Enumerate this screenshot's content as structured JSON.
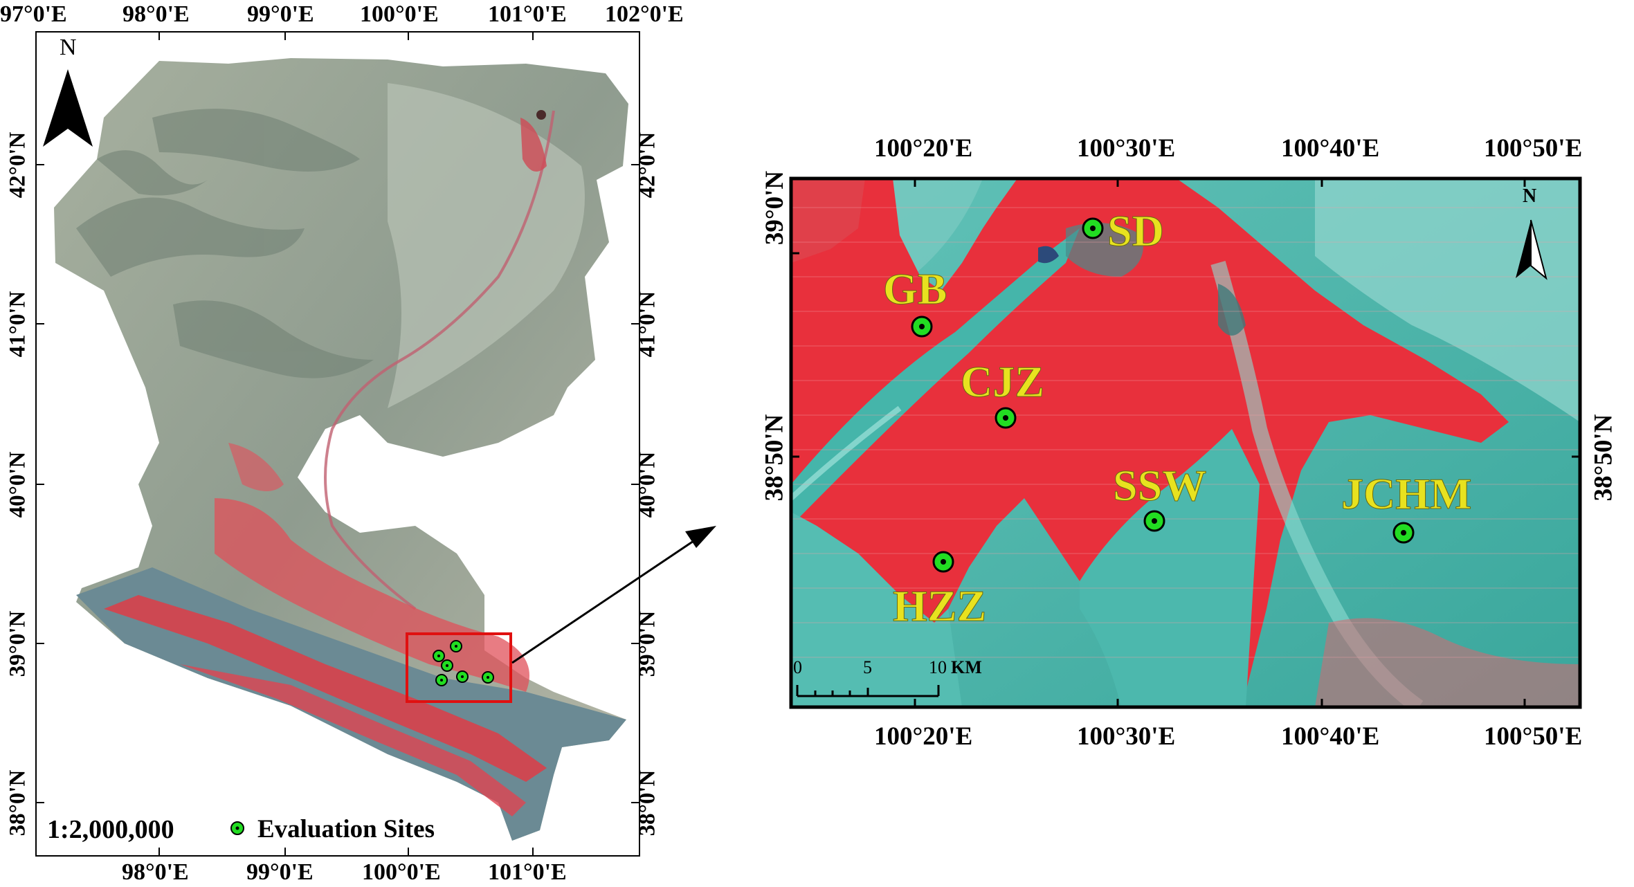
{
  "left_map": {
    "top_lon_labels": [
      "97°0'E",
      "98°0'E",
      "99°0'E",
      "100°0'E",
      "101°0'E",
      "102°0'E"
    ],
    "bottom_lon_labels": [
      "98°0'E",
      "99°0'E",
      "100°0'E",
      "101°0'E"
    ],
    "left_lat_labels": [
      "42°0'N",
      "41°0'N",
      "40°0'N",
      "39°0'N",
      "38°0'N"
    ],
    "right_lat_labels": [
      "42°0'N",
      "41°0'N",
      "40°0'N",
      "39°0'N",
      "38°0'N"
    ],
    "north_label": "N",
    "scale_text": "1:2,000,000",
    "legend_label": "Evaluation Sites"
  },
  "right_map": {
    "top_lon_labels": [
      "100°20'E",
      "100°30'E",
      "100°40'E",
      "100°50'E"
    ],
    "bottom_lon_labels": [
      "100°20'E",
      "100°30'E",
      "100°40'E",
      "100°50'E"
    ],
    "left_lat_labels": [
      "39°0'N",
      "38°50'N"
    ],
    "right_lat_labels": [
      "38°50'N"
    ],
    "north_label": "N",
    "scalebar": {
      "ticks": [
        "0",
        "5",
        "10"
      ],
      "unit": "KM"
    },
    "sites": [
      "SD",
      "GB",
      "CJZ",
      "SSW",
      "JCHM",
      "HZZ"
    ]
  },
  "colors": {
    "site_marker": "#22dd22",
    "site_label": "#e8e21f",
    "vegetation_red": "#e8303c",
    "water_cyan": "#3fb7aa",
    "desert_gray": "#9aa79a",
    "highlight_box": "#e01010"
  }
}
